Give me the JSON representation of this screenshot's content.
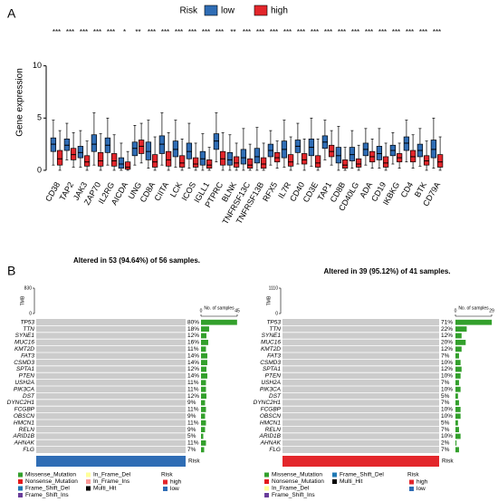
{
  "panel_labels": [
    "A",
    "B"
  ],
  "chart_data": {
    "type": "boxplot",
    "ylabel": "Gene expression",
    "legend_title": "Risk",
    "ylim": [
      -0.7,
      13.7
    ],
    "yticks": [
      0,
      5,
      10
    ],
    "categories": [
      "CD38",
      "TAP2",
      "JAK3",
      "ZAP70",
      "IL2RG",
      "AICDA",
      "UNG",
      "CD8A",
      "CIITA",
      "LCK",
      "ICOS",
      "IGLL1",
      "PTPRC",
      "BLNK",
      "TNFRSF13C",
      "TNFRSF13B",
      "RFX5",
      "IL7R",
      "CD40",
      "CD3E",
      "TAP1",
      "CD8B",
      "CD40LG",
      "ADA",
      "CD19",
      "IKBKG",
      "CD4",
      "BTK",
      "CD79A"
    ],
    "significance": [
      "***",
      "***",
      "***",
      "***",
      "***",
      "*",
      "**",
      "***",
      "***",
      "***",
      "***",
      "***",
      "***",
      "**",
      "***",
      "***",
      "***",
      "***",
      "***",
      "***",
      "***",
      "***",
      "***",
      "***",
      "***",
      "***",
      "***",
      "***",
      "***"
    ],
    "series": [
      {
        "name": "low",
        "color": "#2f6db5",
        "boxes": [
          [
            0.5,
            1.8,
            2.5,
            3.1,
            4.8
          ],
          [
            1,
            1.9,
            2.4,
            3,
            4.5
          ],
          [
            0.3,
            1.2,
            1.7,
            2.3,
            3.8
          ],
          [
            0.5,
            1.8,
            2.5,
            3.4,
            5.5
          ],
          [
            0.5,
            1.7,
            2.4,
            3.1,
            5
          ],
          [
            0,
            0.2,
            0.6,
            1.2,
            2.6
          ],
          [
            0.5,
            1.4,
            2.1,
            2.7,
            4.3
          ],
          [
            0.2,
            1,
            1.8,
            2.7,
            4.8
          ],
          [
            0.5,
            1.6,
            2.5,
            3.3,
            5.5
          ],
          [
            0.3,
            1.3,
            2,
            2.8,
            4.8
          ],
          [
            0.2,
            1.1,
            1.8,
            2.6,
            4.5
          ],
          [
            0,
            0.5,
            1.1,
            1.8,
            3.5
          ],
          [
            0.8,
            2,
            2.8,
            3.5,
            5.5
          ],
          [
            0,
            0.5,
            1,
            1.7,
            3.4
          ],
          [
            0,
            0.6,
            1.2,
            2,
            4
          ],
          [
            0,
            0.7,
            1.3,
            2.1,
            4.1
          ],
          [
            0.5,
            1.3,
            1.9,
            2.5,
            3.8
          ],
          [
            0.3,
            1.2,
            2,
            2.8,
            4.8
          ],
          [
            0.6,
            1.7,
            2.3,
            2.9,
            4.5
          ],
          [
            0.4,
            1.4,
            2.2,
            3,
            5
          ],
          [
            1,
            2.1,
            2.7,
            3.3,
            4.8
          ],
          [
            0,
            0.7,
            1.4,
            2.2,
            4.2
          ],
          [
            0.2,
            0.9,
            1.5,
            2.2,
            3.8
          ],
          [
            0.5,
            1.4,
            2,
            2.6,
            4
          ],
          [
            0.2,
            1,
            1.6,
            2.3,
            4
          ],
          [
            0.6,
            1.4,
            1.9,
            2.4,
            3.6
          ],
          [
            0.8,
            1.9,
            2.6,
            3.2,
            4.8
          ],
          [
            0.4,
            1.3,
            1.9,
            2.5,
            4
          ],
          [
            0.2,
            1.2,
            2,
            2.9,
            5
          ]
        ]
      },
      {
        "name": "high",
        "color": "#e3262b",
        "boxes": [
          [
            0,
            0.5,
            1.1,
            1.9,
            3.8
          ],
          [
            0.3,
            1,
            1.5,
            2.1,
            3.6
          ],
          [
            0,
            0.4,
            0.8,
            1.4,
            2.8
          ],
          [
            0,
            0.4,
            0.9,
            1.7,
            3.5
          ],
          [
            0,
            0.4,
            0.9,
            1.6,
            3.4
          ],
          [
            0,
            0.1,
            0.3,
            0.8,
            1.8
          ],
          [
            0.7,
            1.6,
            2.3,
            2.9,
            4.5
          ],
          [
            0,
            0.3,
            0.8,
            1.5,
            3.2
          ],
          [
            0,
            0.4,
            1,
            1.8,
            3.6
          ],
          [
            0,
            0.3,
            0.7,
            1.4,
            3
          ],
          [
            0,
            0.3,
            0.6,
            1.2,
            2.6
          ],
          [
            0,
            0.2,
            0.5,
            1,
            2.2
          ],
          [
            0,
            0.5,
            1.1,
            1.8,
            3.6
          ],
          [
            0,
            0.3,
            0.7,
            1.3,
            2.6
          ],
          [
            0,
            0.2,
            0.5,
            1.1,
            2.5
          ],
          [
            0,
            0.2,
            0.6,
            1.2,
            2.6
          ],
          [
            0.2,
            0.8,
            1.2,
            1.7,
            2.8
          ],
          [
            0,
            0.4,
            0.8,
            1.5,
            3.2
          ],
          [
            0,
            0.6,
            1,
            1.6,
            3
          ],
          [
            0,
            0.3,
            0.7,
            1.4,
            3
          ],
          [
            0.5,
            1.3,
            1.8,
            2.4,
            3.8
          ],
          [
            0,
            0.2,
            0.5,
            1,
            2.2
          ],
          [
            0,
            0.3,
            0.6,
            1.1,
            2.4
          ],
          [
            0.2,
            0.8,
            1.3,
            1.8,
            3
          ],
          [
            0,
            0.3,
            0.7,
            1.3,
            2.6
          ],
          [
            0.2,
            0.8,
            1.2,
            1.6,
            2.6
          ],
          [
            0.2,
            0.8,
            1.3,
            1.9,
            3.4
          ],
          [
            0,
            0.5,
            0.9,
            1.4,
            2.8
          ],
          [
            0,
            0.3,
            0.8,
            1.5,
            3.2
          ]
        ]
      }
    ]
  },
  "oncoplots": [
    {
      "title": "Altered in 53 (94.64%) of 56 samples.",
      "total_samples": 56,
      "tmb_label": "TMB",
      "tmb_lim": [
        0,
        830
      ],
      "tmb_ticks": [
        0,
        830
      ],
      "samples_label": "No. of samples",
      "samples_lim": [
        0,
        45
      ],
      "samples_ticks": [
        0,
        45
      ],
      "genes": [
        "TP53",
        "TTN",
        "SYNE1",
        "MUC16",
        "KMT2D",
        "FAT3",
        "CSMD3",
        "SPTA1",
        "PTEN",
        "USH2A",
        "PIK3CA",
        "DST",
        "DYNC2H1",
        "FCGBP",
        "OBSCN",
        "HMCN1",
        "RELN",
        "ARID1B",
        "AHNAK",
        "FLG"
      ],
      "values": [
        80,
        18,
        12,
        16,
        11,
        14,
        14,
        12,
        14,
        11,
        11,
        12,
        9,
        11,
        9,
        11,
        9,
        5,
        11,
        7
      ],
      "value_labels": [
        "80%",
        "18%",
        "12%",
        "16%",
        "11%",
        "14%",
        "14%",
        "12%",
        "14%",
        "11%",
        "11%",
        "12%",
        "9%",
        "11%",
        "9%",
        "11%",
        "9%",
        "5%",
        "11%",
        "7%"
      ],
      "risk_label": "Risk",
      "risk_bar_color": "#2f6db5",
      "mutation_legend": [
        {
          "name": "Missense_Mutation",
          "color": "#33a02c"
        },
        {
          "name": "Nonsense_Mutation",
          "color": "#e31a1c"
        },
        {
          "name": "Frame_Shift_Del",
          "color": "#1f78b4"
        },
        {
          "name": "Frame_Shift_Ins",
          "color": "#6a3d9a"
        },
        {
          "name": "In_Frame_Del",
          "color": "#ffff99"
        },
        {
          "name": "In_Frame_Ins",
          "color": "#fb9a99"
        },
        {
          "name": "Multi_Hit",
          "color": "#000000"
        }
      ],
      "risk_legend_title": "Risk",
      "risk_legend": [
        {
          "name": "high",
          "color": "#e3262b"
        },
        {
          "name": "low",
          "color": "#2f6db5"
        }
      ]
    },
    {
      "title": "Altered in 39 (95.12%) of 41 samples.",
      "total_samples": 41,
      "tmb_label": "TMB",
      "tmb_lim": [
        0,
        1110
      ],
      "tmb_ticks": [
        0,
        1110
      ],
      "samples_label": "No. of samples",
      "samples_lim": [
        0,
        29
      ],
      "samples_ticks": [
        0,
        29
      ],
      "genes": [
        "TP53",
        "TTN",
        "SYNE1",
        "MUC16",
        "KMT2D",
        "FAT3",
        "CSMD3",
        "SPTA1",
        "PTEN",
        "USH2A",
        "PIK3CA",
        "DST",
        "DYNC2H1",
        "FCGBP",
        "OBSCN",
        "HMCN1",
        "RELN",
        "ARID1B",
        "AHNAK",
        "FLG"
      ],
      "values": [
        71,
        22,
        12,
        20,
        12,
        7,
        10,
        12,
        10,
        7,
        10,
        5,
        7,
        10,
        10,
        5,
        7,
        10,
        2,
        7
      ],
      "value_labels": [
        "71%",
        "22%",
        "12%",
        "20%",
        "12%",
        "7%",
        "10%",
        "12%",
        "10%",
        "7%",
        "10%",
        "5%",
        "7%",
        "10%",
        "10%",
        "5%",
        "7%",
        "10%",
        "2%",
        "7%"
      ],
      "risk_label": "Risk",
      "risk_bar_color": "#e3262b",
      "mutation_legend": [
        {
          "name": "Missense_Mutation",
          "color": "#33a02c"
        },
        {
          "name": "Nonsense_Mutation",
          "color": "#e31a1c"
        },
        {
          "name": "In_Frame_Del",
          "color": "#ffff99"
        },
        {
          "name": "Frame_Shift_Ins",
          "color": "#6a3d9a"
        },
        {
          "name": "Frame_Shift_Del",
          "color": "#1f78b4"
        },
        {
          "name": "Multi_Hit",
          "color": "#000000"
        }
      ],
      "risk_legend_title": "Risk",
      "risk_legend": [
        {
          "name": "high",
          "color": "#e3262b"
        },
        {
          "name": "low",
          "color": "#2f6db5"
        }
      ]
    }
  ]
}
